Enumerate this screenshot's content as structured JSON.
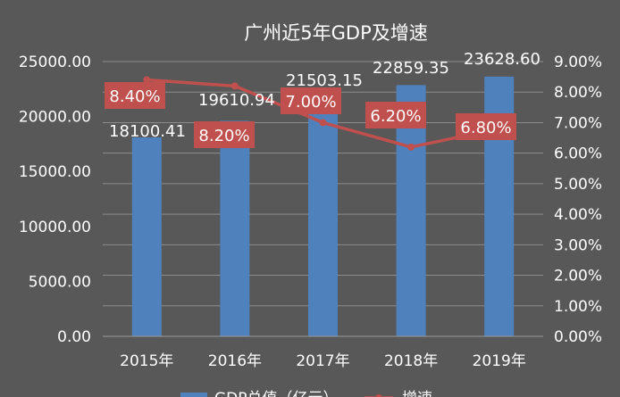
{
  "chart_data": {
    "type": "bar",
    "title": "广州近5年GDP及增速",
    "categories": [
      "2015年",
      "2016年",
      "2017年",
      "2018年",
      "2019年"
    ],
    "series": [
      {
        "name": "GDP总值（亿元）",
        "type": "bar",
        "axis": "left",
        "values": [
          18100.41,
          19610.94,
          21503.15,
          22859.35,
          23628.6
        ],
        "labels": [
          "18100.41",
          "19610.94",
          "21503.15",
          "22859.35",
          "23628.60"
        ],
        "color": "#4f81bd"
      },
      {
        "name": "增速",
        "type": "line",
        "axis": "right",
        "values": [
          8.4,
          8.2,
          7.0,
          6.2,
          6.8
        ],
        "labels": [
          "8.40%",
          "8.20%",
          "7.00%",
          "6.20%",
          "6.80%"
        ],
        "color": "#c0504d"
      }
    ],
    "y_left": {
      "lim": [
        0,
        25000
      ],
      "ticks": [
        "0.00",
        "5000.00",
        "10000.00",
        "15000.00",
        "20000.00",
        "25000.00"
      ]
    },
    "y_right": {
      "lim": [
        0,
        9
      ],
      "ticks": [
        "0.00%",
        "1.00%",
        "2.00%",
        "3.00%",
        "4.00%",
        "5.00%",
        "6.00%",
        "7.00%",
        "8.00%",
        "9.00%"
      ]
    },
    "grid": true,
    "legend_position": "bottom",
    "background": "#585858",
    "gridline_color": "#8c8c8c"
  }
}
